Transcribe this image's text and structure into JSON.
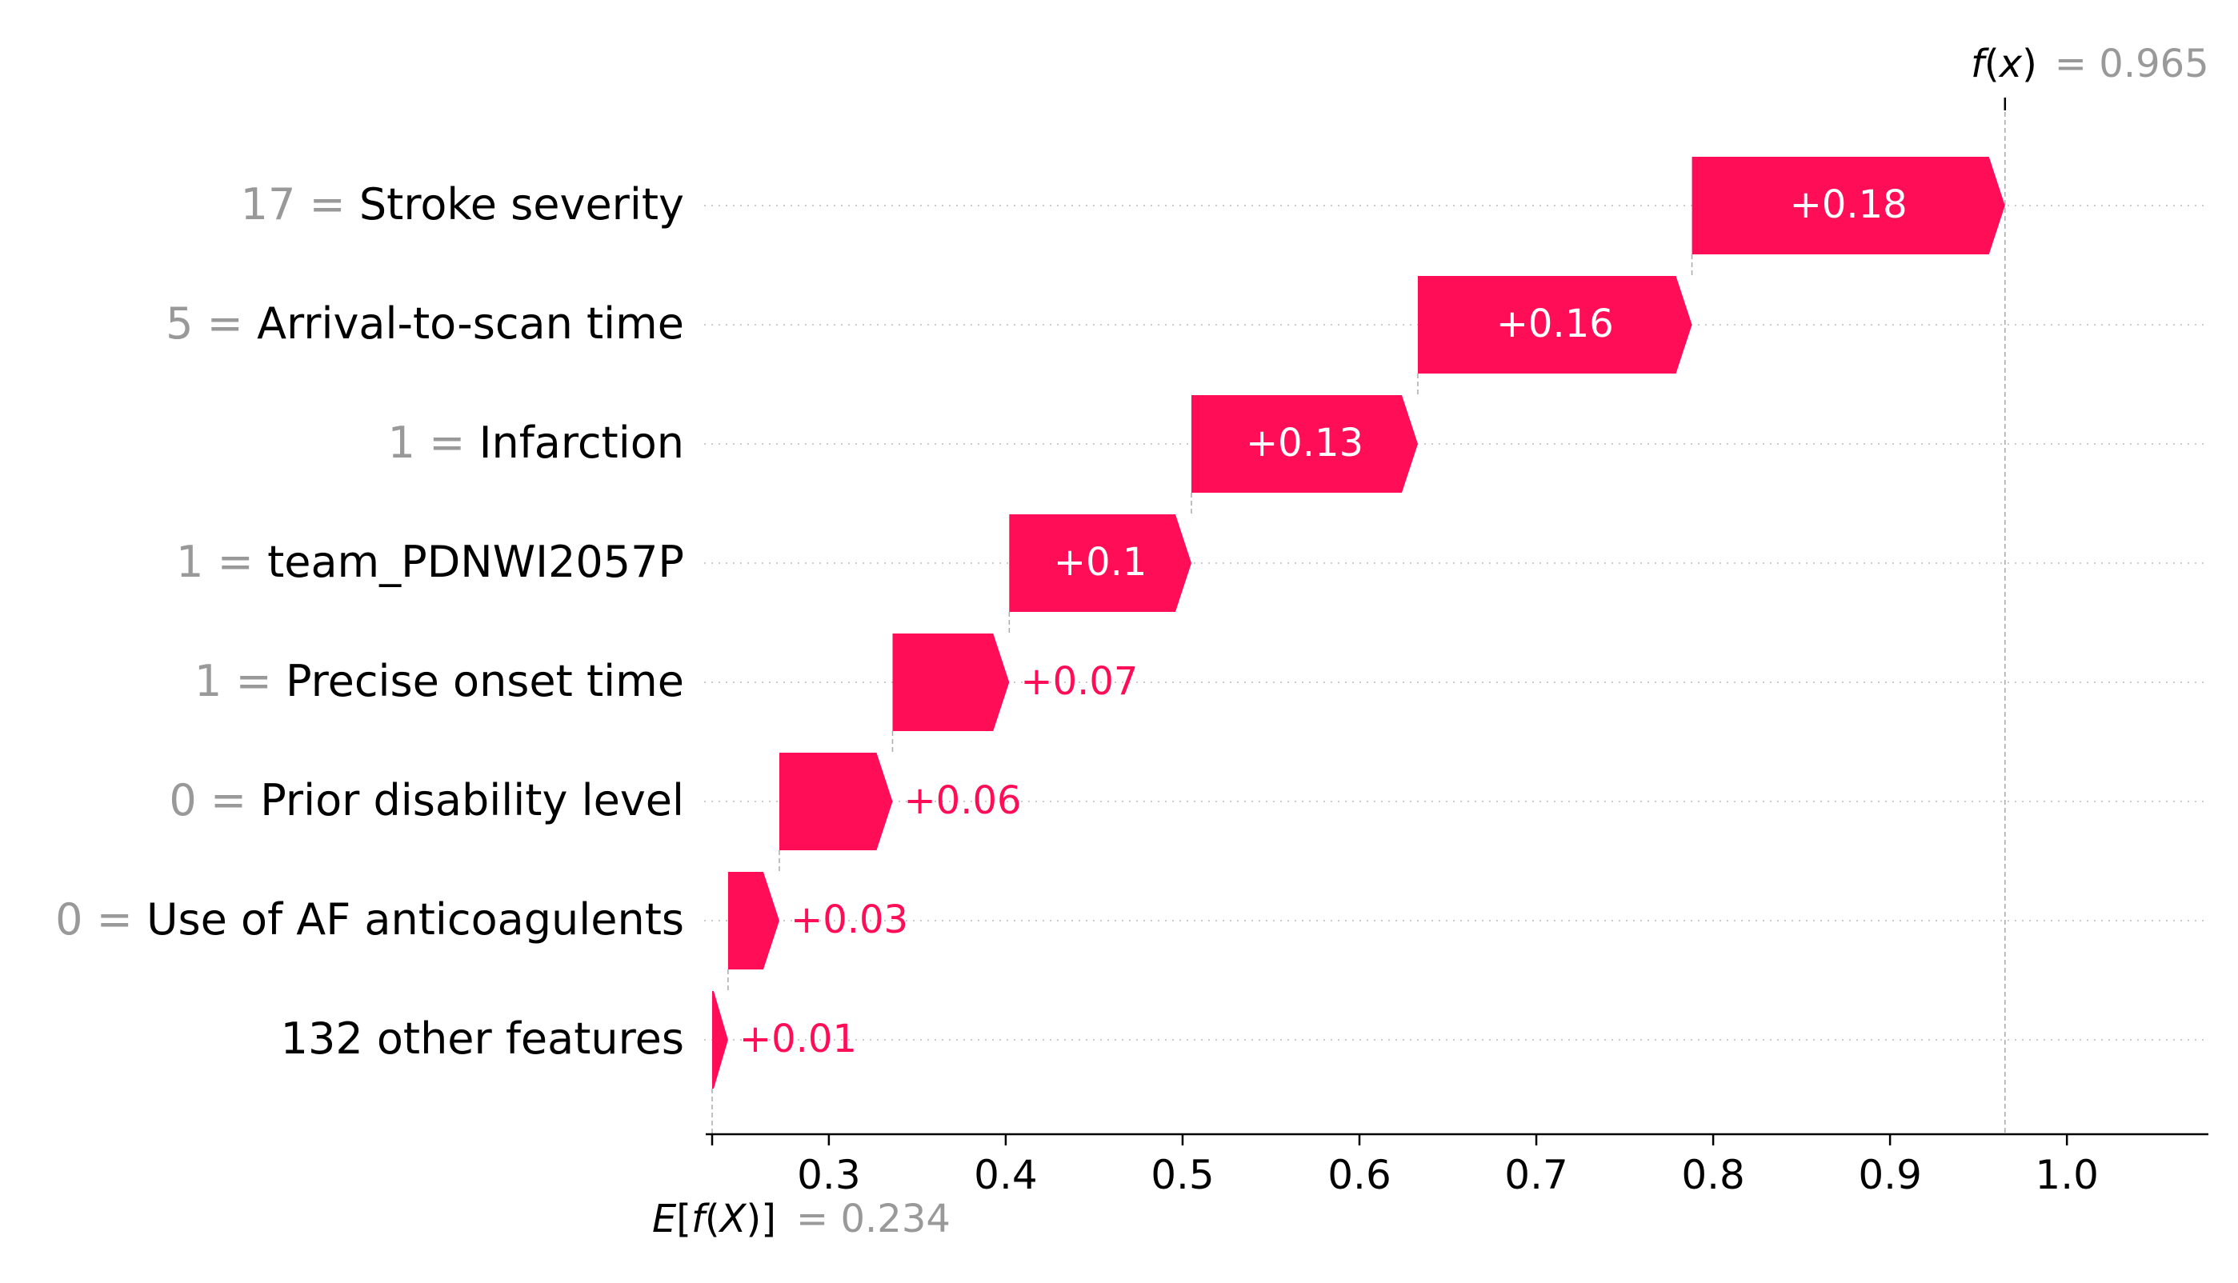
{
  "chart_data": {
    "type": "waterfall",
    "title": "",
    "xlim": [
      0.234,
      1.08
    ],
    "x_ticks": [
      "0.3",
      "0.4",
      "0.5",
      "0.6",
      "0.7",
      "0.8",
      "0.9",
      "1.0"
    ],
    "x_tick_values": [
      0.3,
      0.4,
      0.5,
      0.6,
      0.7,
      0.8,
      0.9,
      1.0
    ],
    "base_value": 0.234,
    "base_value_text": "0.234",
    "output_value": 0.965,
    "output_value_text": "0.965",
    "base_label": "E[f(X)]",
    "output_label": "f(x)",
    "color_positive": "#ff0d57",
    "features": [
      {
        "value": "17",
        "name": "Stroke severity",
        "contribution": 0.18,
        "contribution_text": "+0.18",
        "start": 0.788,
        "end": 0.965
      },
      {
        "value": "5",
        "name": "Arrival-to-scan time",
        "contribution": 0.16,
        "contribution_text": "+0.16",
        "start": 0.633,
        "end": 0.788
      },
      {
        "value": "1",
        "name": "Infarction",
        "contribution": 0.13,
        "contribution_text": "+0.13",
        "start": 0.505,
        "end": 0.633
      },
      {
        "value": "1",
        "name": "team_PDNWI2057P",
        "contribution": 0.1,
        "contribution_text": "+0.1",
        "start": 0.402,
        "end": 0.505
      },
      {
        "value": "1",
        "name": "Precise onset time",
        "contribution": 0.07,
        "contribution_text": "+0.07",
        "start": 0.336,
        "end": 0.402
      },
      {
        "value": "0",
        "name": "Prior disability level",
        "contribution": 0.06,
        "contribution_text": "+0.06",
        "start": 0.272,
        "end": 0.336
      },
      {
        "value": "0",
        "name": "Use of AF anticoagulents",
        "contribution": 0.03,
        "contribution_text": "+0.03",
        "start": 0.243,
        "end": 0.272
      },
      {
        "value": "",
        "name": "132 other features",
        "contribution": 0.01,
        "contribution_text": "+0.01",
        "start": 0.234,
        "end": 0.243
      }
    ]
  }
}
